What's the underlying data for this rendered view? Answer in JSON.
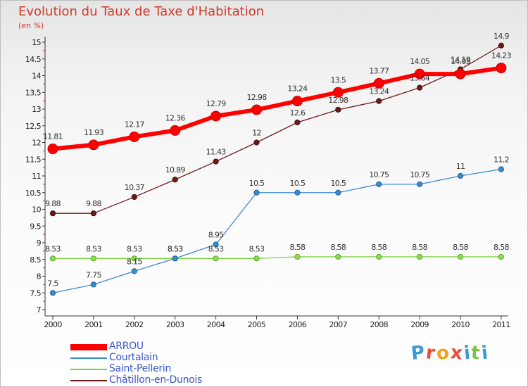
{
  "header": {
    "title": "Evolution du Taux de Taxe d'Habitation",
    "unit": "(en %)"
  },
  "brand": {
    "text": "Proxiti",
    "colors": [
      "#3a9bd5",
      "#e84c3d",
      "#f2a11f",
      "#e84c3d",
      "#3a9bd5",
      "#7cc242",
      "#3a9bd5"
    ]
  },
  "chart_data": {
    "type": "line",
    "title": "Evolution du Taux de Taxe d'Habitation",
    "ylabel": "(en %)",
    "xlabel": "",
    "categories": [
      "2000",
      "2001",
      "2002",
      "2003",
      "2004",
      "2005",
      "2006",
      "2007",
      "2008",
      "2009",
      "2010",
      "2011"
    ],
    "ylim": [
      7,
      15
    ],
    "ytick_step": 0.5,
    "grid": false,
    "legend_position": "bottom-left",
    "series": [
      {
        "name": "ARROU",
        "color": "#ff0000",
        "values": [
          11.81,
          11.93,
          12.17,
          12.36,
          12.79,
          12.98,
          13.24,
          13.5,
          13.77,
          14.05,
          14.05,
          14.23
        ]
      },
      {
        "name": "Courtalain",
        "color": "#3a8bd0",
        "values": [
          7.5,
          7.75,
          8.15,
          8.53,
          8.95,
          10.5,
          10.5,
          10.5,
          10.75,
          10.75,
          11,
          11.2
        ]
      },
      {
        "name": "Saint-Pellerin",
        "color": "#7fd040",
        "values": [
          8.53,
          8.53,
          8.53,
          8.53,
          8.53,
          8.53,
          8.58,
          8.58,
          8.58,
          8.58,
          8.58,
          8.58
        ]
      },
      {
        "name": "Châtillon-en-Dunois",
        "color": "#6e1a1a",
        "values": [
          9.88,
          9.88,
          10.37,
          10.89,
          11.43,
          12,
          12.6,
          12.98,
          13.24,
          13.64,
          14.19,
          14.9
        ]
      }
    ]
  }
}
